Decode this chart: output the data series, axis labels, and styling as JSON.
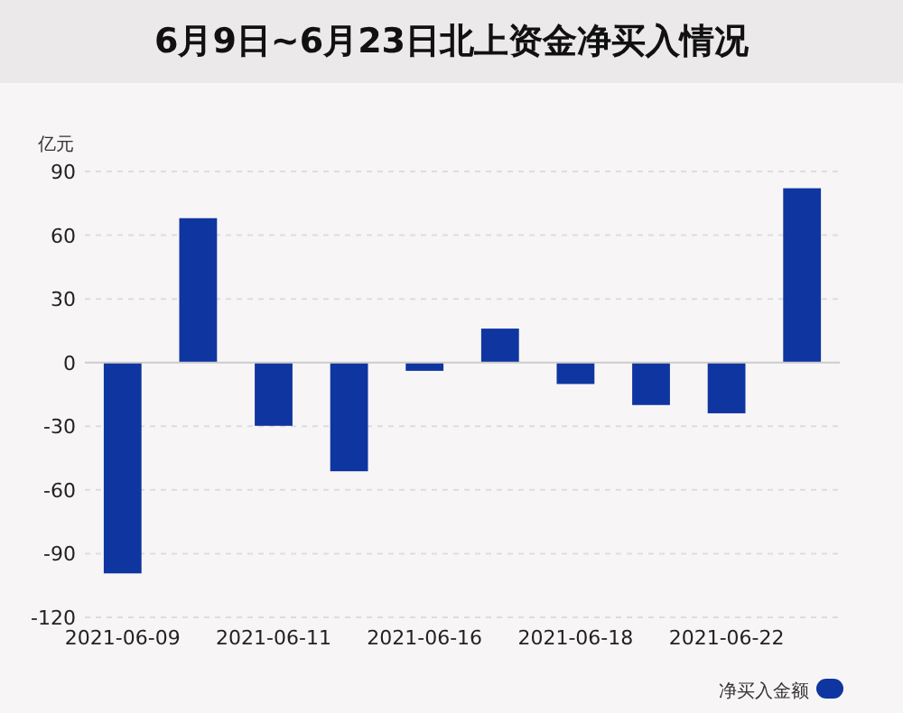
{
  "chart_data": {
    "type": "bar",
    "title": "6月9日~6月23日北上资金净买入情况",
    "ylabel": "亿元",
    "categories": [
      "2021-06-09",
      null,
      "2021-06-11",
      null,
      "2021-06-16",
      null,
      "2021-06-18",
      null,
      "2021-06-22",
      null
    ],
    "series": [
      {
        "name": "净买入金额",
        "color": "#0f35a0",
        "values": [
          -99.3,
          68,
          -29.8,
          -51.2,
          -3.9,
          16,
          -10.1,
          -20,
          -23.9,
          82.1
        ]
      }
    ],
    "ylim": [
      -120,
      90
    ],
    "yticks": [
      -120,
      -90,
      -60,
      -30,
      0,
      30,
      60,
      90
    ],
    "grid": "y",
    "legend": "bottom right"
  }
}
